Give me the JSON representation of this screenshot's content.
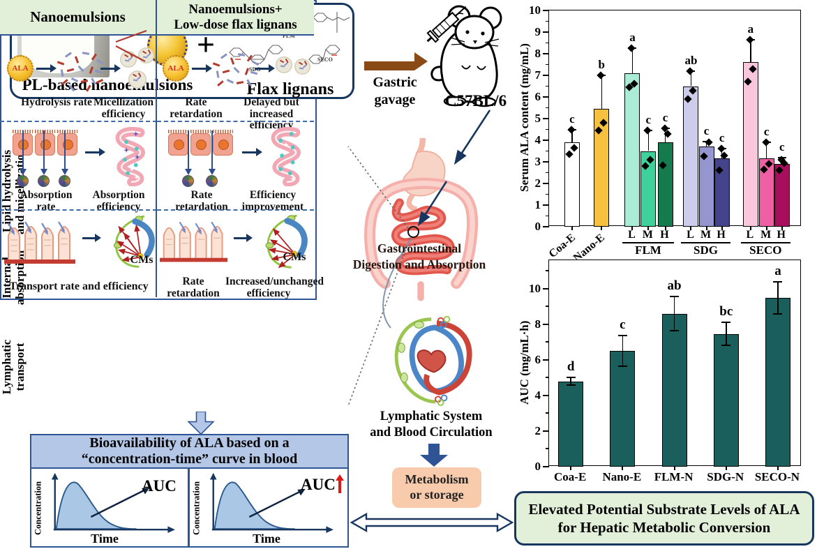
{
  "top_left": {
    "label_left": "PL-based nanoemulsions",
    "plus": "+",
    "label_right": "Flax lignans",
    "struct_1": "FLM",
    "struct_2": "SDG",
    "struct_3": "SECO"
  },
  "gavage": {
    "line1": "Gastric",
    "line2": "gavage",
    "mouse_label": "C57BL/6"
  },
  "table": {
    "header_left": "Nanoemulsions",
    "header_right_1": "Nanoemulsions+",
    "header_right_2": "Low-dose flax lignans",
    "rowlabel_1a": "Lipid hydrolysis",
    "rowlabel_1b": "and micellization",
    "rowlabel_2a": "Internal",
    "rowlabel_2b": "absorption",
    "rowlabel_3a": "Lymphatic",
    "rowlabel_3b": "transport",
    "ala": "ALA",
    "cms": "CMs",
    "r1_l_c1": "Hydrolysis rate",
    "r1_l_c2": "Micellization efficiency",
    "r1_r_c1": "Rate retardation",
    "r1_r_c2": "Delayed but increased efficiency",
    "r2_l_c1": "Absorption rate",
    "r2_l_c2": "Absorption efficiency",
    "r2_r_c1": "Rate retardation",
    "r2_r_c2": "Efficiency improvement",
    "r3_l_c1": "Transport rate and efficiency",
    "r3_r_c1": "Rate retardation",
    "r3_r_c2": "Increased/unchanged efficiency"
  },
  "bio": {
    "title_1": "Bioavailability of ALA based on a",
    "title_2": "“concentration-time” curve in blood",
    "ylabel": "Concentration",
    "xlabel": "Time",
    "auc": "AUC"
  },
  "middle": {
    "gi_1": "Gastrointestinal",
    "gi_2": "Digestion and Absorption",
    "lymph_1": "Lymphatic System",
    "lymph_2": "and Blood Circulation",
    "met_1": "Metabolism",
    "met_2": "or storage"
  },
  "conclusion": {
    "line1": "Elevated Potential Substrate Levels of ALA",
    "line2": "for Hepatic Metabolic Conversion"
  },
  "chart_data": [
    {
      "type": "bar",
      "ylabel": "Serum ALA content (mg/mL)",
      "ylim": [
        0,
        10
      ],
      "ytick_step": 1,
      "grid": false,
      "groups": [
        {
          "label": "Coa-E",
          "rotate_label": true,
          "bars": [
            {
              "dose": "",
              "color": "#ffffff",
              "value": 3.9,
              "err": 0.6,
              "sig": "c",
              "points": [
                3.35,
                3.65,
                4.5
              ]
            }
          ]
        },
        {
          "label": "Nano-E",
          "rotate_label": true,
          "bars": [
            {
              "dose": "",
              "color": "#f5c13e",
              "value": 5.45,
              "err": 1.55,
              "sig": "b",
              "points": [
                4.45,
                4.8,
                7.0
              ]
            }
          ]
        },
        {
          "label": "FLM",
          "bars": [
            {
              "dose": "L",
              "color": "#aaecd6",
              "value": 7.1,
              "err": 1.15,
              "sig": "a",
              "points": [
                6.45,
                6.6,
                8.25
              ]
            },
            {
              "dose": "M",
              "color": "#3fd19c",
              "value": 3.5,
              "err": 0.95,
              "sig": "c",
              "points": [
                2.8,
                3.1,
                4.45
              ]
            },
            {
              "dose": "H",
              "color": "#157a4e",
              "value": 3.9,
              "err": 0.65,
              "sig": "c",
              "points": [
                2.85,
                4.3,
                4.55
              ]
            }
          ]
        },
        {
          "label": "SDG",
          "bars": [
            {
              "dose": "L",
              "color": "#cdcdeb",
              "value": 6.5,
              "err": 0.7,
              "sig": "ab",
              "points": [
                5.9,
                6.3,
                7.2
              ]
            },
            {
              "dose": "M",
              "color": "#9595cf",
              "value": 3.7,
              "err": 0.25,
              "sig": "c",
              "points": [
                3.25,
                3.9
              ]
            },
            {
              "dose": "H",
              "color": "#44448d",
              "value": 3.15,
              "err": 0.45,
              "sig": "c",
              "points": [
                2.6,
                3.3,
                3.6
              ]
            }
          ]
        },
        {
          "label": "SECO",
          "bars": [
            {
              "dose": "L",
              "color": "#f9c6db",
              "value": 7.6,
              "err": 1.05,
              "sig": "a",
              "points": [
                6.7,
                7.3,
                8.65
              ]
            },
            {
              "dose": "M",
              "color": "#ee5fa4",
              "value": 3.15,
              "err": 0.75,
              "sig": "c",
              "points": [
                2.65,
                2.9,
                3.9
              ]
            },
            {
              "dose": "H",
              "color": "#a80e5c",
              "value": 2.9,
              "err": 0.3,
              "sig": "c",
              "points": [
                2.6,
                2.95,
                3.1
              ]
            }
          ]
        }
      ]
    },
    {
      "type": "bar",
      "ylabel": "AUC (mg/mL·h)",
      "ylim": [
        0,
        11.6
      ],
      "ytick_step": 2,
      "grid": false,
      "bar_color": "#1a5f5b",
      "categories": [
        "Coa-E",
        "Nano-E",
        "FLM-N",
        "SDG-N",
        "SECO-N"
      ],
      "values": [
        4.8,
        6.5,
        8.6,
        7.45,
        9.5
      ],
      "errors": [
        0.2,
        0.85,
        0.95,
        0.65,
        0.9
      ],
      "sig": [
        "d",
        "c",
        "ab",
        "bc",
        "a"
      ]
    }
  ]
}
